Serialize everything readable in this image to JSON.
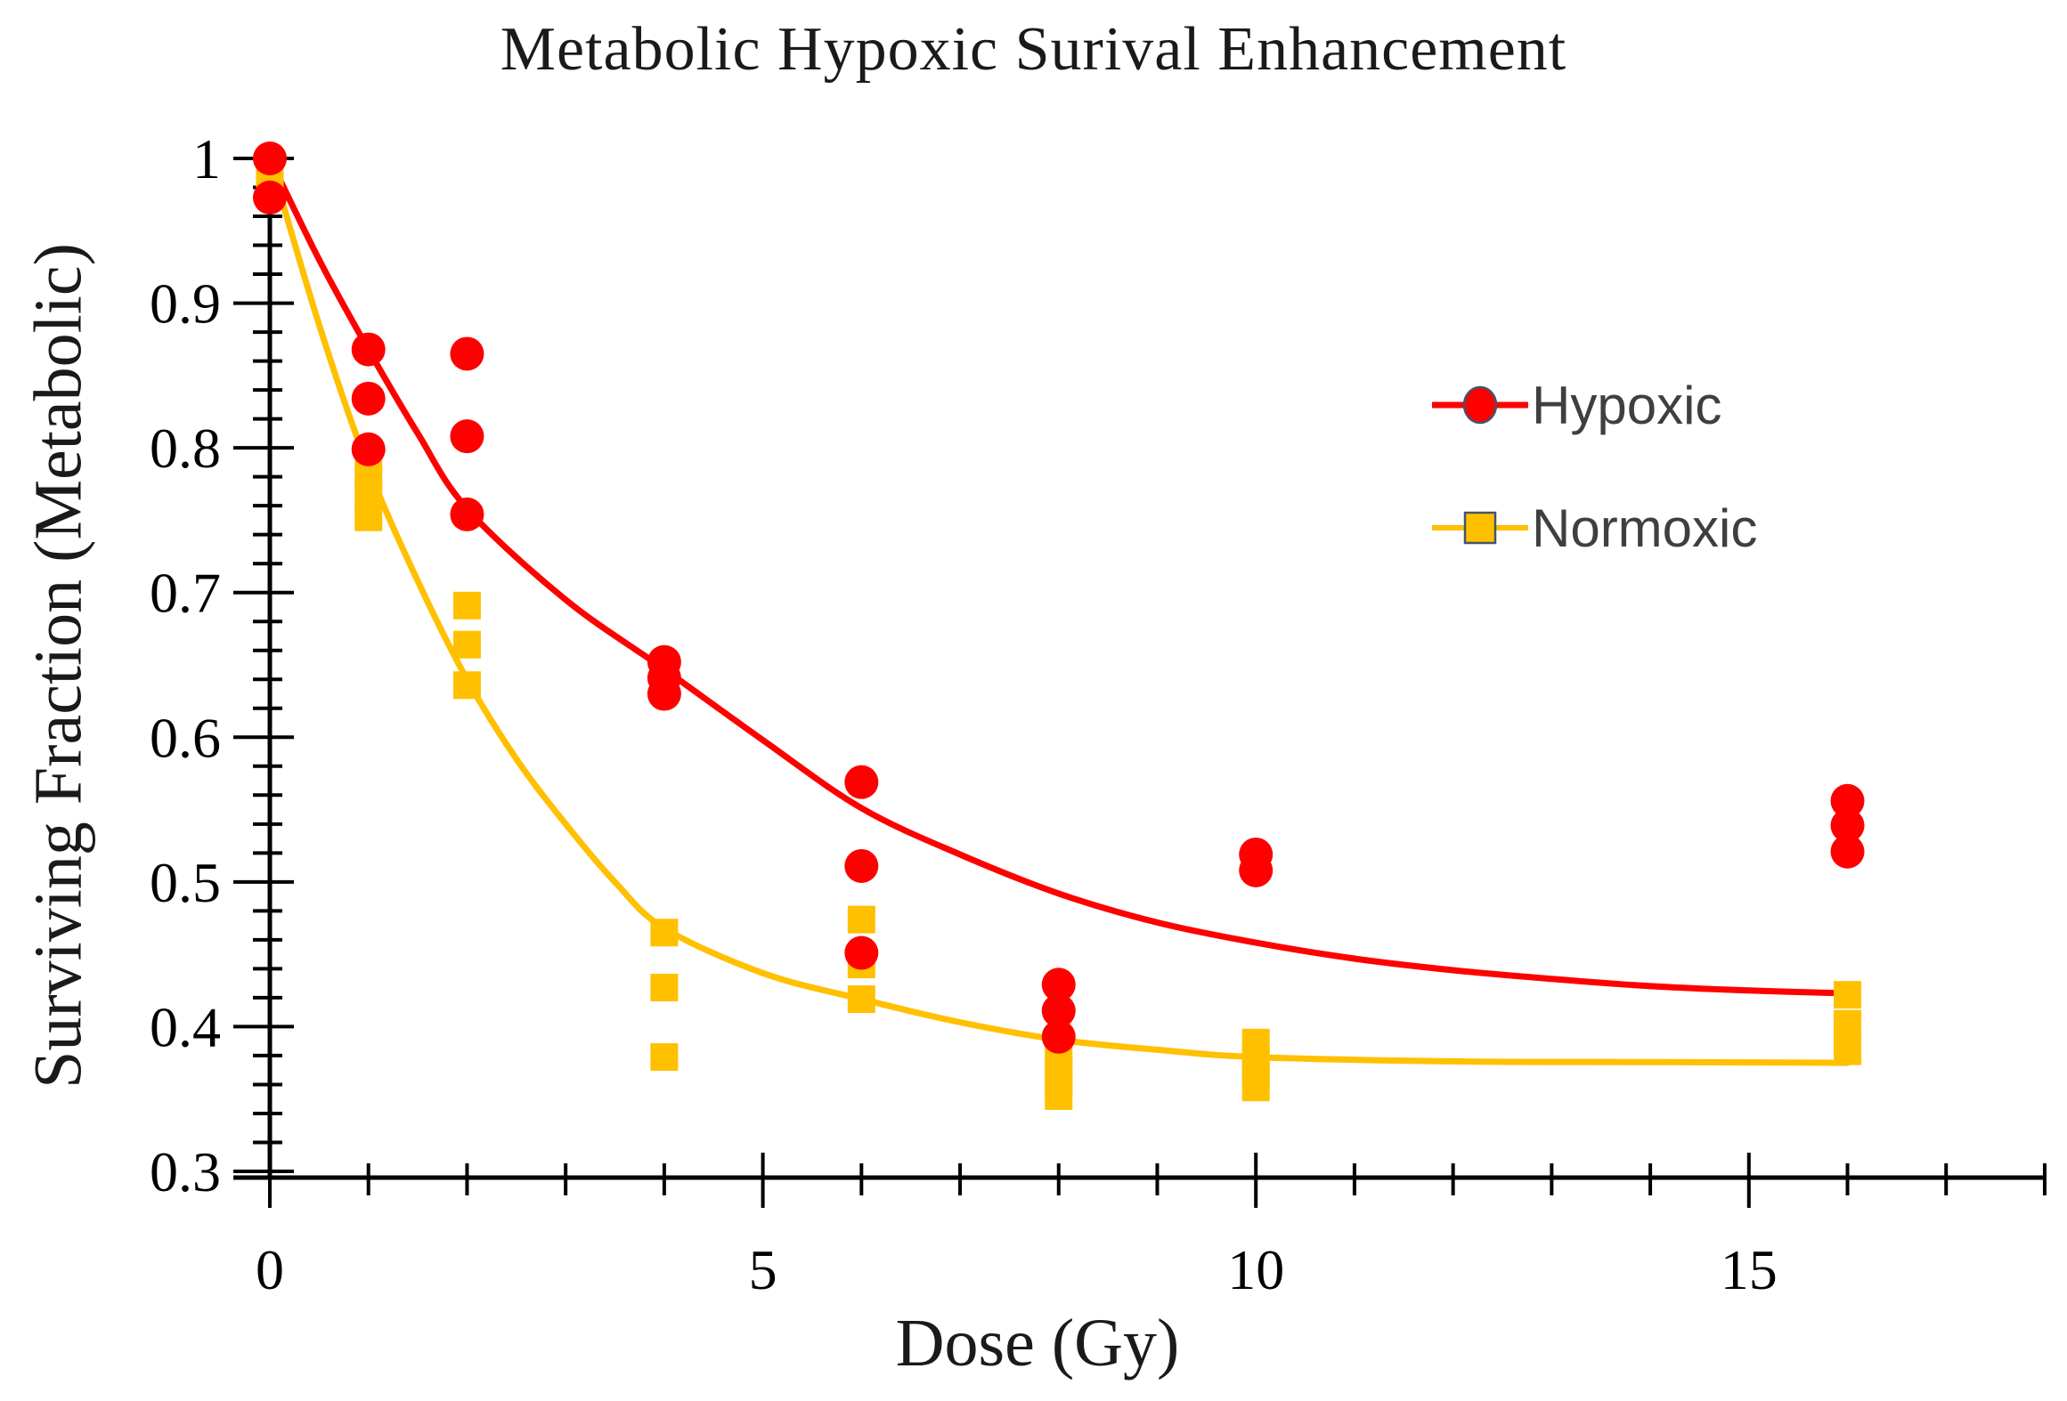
{
  "chart_data": {
    "type": "scatter",
    "title": "Metabolic Hypoxic Surival Enhancement",
    "xlabel": "Dose (Gy)",
    "ylabel": "Surviving Fraction (Metabolic)",
    "xlim": [
      0,
      18
    ],
    "ylim": [
      0.3,
      1.0
    ],
    "grid": false,
    "legend_position": "right-middle",
    "x_axis": {
      "minor_tick_step": 1,
      "labeled_tick_values": [
        0,
        5,
        10,
        15
      ],
      "labels": [
        "0",
        "5",
        "10",
        "15"
      ]
    },
    "y_axis": {
      "major_tick_step": 0.1,
      "minor_tick_step": 0.02,
      "labeled_tick_values": [
        1.0,
        0.9,
        0.8,
        0.7,
        0.6,
        0.5,
        0.4,
        0.3
      ],
      "labels": [
        "1",
        "0.9",
        "0.8",
        "0.7",
        "0.6",
        "0.5",
        "0.4",
        "0.3"
      ]
    },
    "colors": {
      "hypoxic": "#FF0000",
      "normoxic": "#FFC000",
      "axis": "#000000",
      "legend_text": "#3F3F3F",
      "marker_outline": "#44546A"
    },
    "series": [
      {
        "name": "Hypoxic",
        "marker": "circle",
        "color": "#FF0000",
        "marker_outline": "#44546A",
        "points": [
          [
            0,
            1.0
          ],
          [
            0,
            0.973
          ],
          [
            1,
            0.868
          ],
          [
            1,
            0.834
          ],
          [
            1,
            0.799
          ],
          [
            2,
            0.865
          ],
          [
            2,
            0.808
          ],
          [
            2,
            0.754
          ],
          [
            4,
            0.652
          ],
          [
            4,
            0.641
          ],
          [
            4,
            0.63
          ],
          [
            6,
            0.569
          ],
          [
            6,
            0.511
          ],
          [
            6,
            0.451
          ],
          [
            8,
            0.429
          ],
          [
            8,
            0.411
          ],
          [
            8,
            0.393
          ],
          [
            10,
            0.519
          ],
          [
            10,
            0.508
          ],
          [
            16,
            0.556
          ],
          [
            16,
            0.539
          ],
          [
            16,
            0.521
          ]
        ],
        "trend": [
          [
            0,
            1.0
          ],
          [
            0.5,
            0.93
          ],
          [
            1,
            0.868
          ],
          [
            1.5,
            0.81
          ],
          [
            2,
            0.758
          ],
          [
            3,
            0.695
          ],
          [
            4,
            0.647
          ],
          [
            5,
            0.598
          ],
          [
            6,
            0.551
          ],
          [
            7,
            0.519
          ],
          [
            8,
            0.492
          ],
          [
            9,
            0.472
          ],
          [
            10,
            0.458
          ],
          [
            11,
            0.447
          ],
          [
            12,
            0.439
          ],
          [
            13,
            0.433
          ],
          [
            14,
            0.428
          ],
          [
            15,
            0.425
          ],
          [
            16,
            0.423
          ]
        ]
      },
      {
        "name": "Normoxic",
        "marker": "square",
        "color": "#FFC000",
        "marker_outline": "#44546A",
        "points": [
          [
            0,
            0.991
          ],
          [
            0,
            0.981
          ],
          [
            1,
            0.782
          ],
          [
            1,
            0.767
          ],
          [
            1,
            0.752
          ],
          [
            2,
            0.691
          ],
          [
            2,
            0.664
          ],
          [
            2,
            0.636
          ],
          [
            4,
            0.465
          ],
          [
            4,
            0.427
          ],
          [
            4,
            0.379
          ],
          [
            6,
            0.474
          ],
          [
            6,
            0.443
          ],
          [
            6,
            0.419
          ],
          [
            8,
            0.381
          ],
          [
            8,
            0.371
          ],
          [
            8,
            0.361
          ],
          [
            8,
            0.352
          ],
          [
            10,
            0.389
          ],
          [
            10,
            0.378
          ],
          [
            10,
            0.368
          ],
          [
            10,
            0.358
          ],
          [
            16,
            0.422
          ],
          [
            16,
            0.402
          ],
          [
            16,
            0.383
          ]
        ],
        "trend": [
          [
            0,
            1.0
          ],
          [
            0.5,
            0.885
          ],
          [
            1,
            0.786
          ],
          [
            1.5,
            0.708
          ],
          [
            2,
            0.64
          ],
          [
            2.5,
            0.585
          ],
          [
            3,
            0.54
          ],
          [
            3.5,
            0.5
          ],
          [
            4,
            0.468
          ],
          [
            5,
            0.437
          ],
          [
            6,
            0.419
          ],
          [
            7,
            0.403
          ],
          [
            8,
            0.391
          ],
          [
            9,
            0.384
          ],
          [
            10,
            0.379
          ],
          [
            12,
            0.376
          ],
          [
            14,
            0.3755
          ],
          [
            16,
            0.375
          ]
        ]
      }
    ]
  }
}
